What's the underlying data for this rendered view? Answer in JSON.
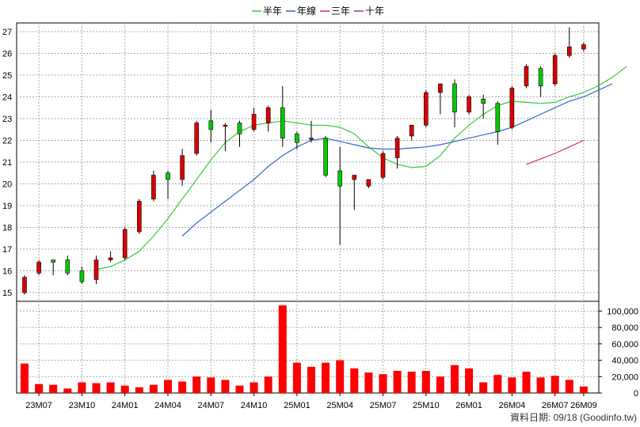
{
  "chart_data": {
    "type": "candlestick",
    "legend": [
      {
        "name": "半年",
        "color": "#33cc33"
      },
      {
        "name": "年線",
        "color": "#3366cc"
      },
      {
        "name": "三年",
        "color": "#cc3366"
      },
      {
        "name": "十年",
        "color": "#993399"
      }
    ],
    "legend_position": "top-center",
    "price_axis": {
      "ylim": [
        14.6,
        27.4
      ],
      "ticks": [
        15,
        16,
        17,
        18,
        19,
        20,
        21,
        22,
        23,
        24,
        25,
        26,
        27
      ],
      "side": "left"
    },
    "volume_axis": {
      "ylim": [
        0,
        112000
      ],
      "ticks": [
        0,
        20000,
        40000,
        60000,
        80000,
        100000
      ],
      "tick_labels": [
        "0",
        "20,000",
        "40,000",
        "60,000",
        "80,000",
        "100,000"
      ],
      "side": "right"
    },
    "x_tick_labels": [
      {
        "label": "23M07",
        "index": 1
      },
      {
        "label": "23M10",
        "index": 4
      },
      {
        "label": "24M01",
        "index": 7
      },
      {
        "label": "24M04",
        "index": 10
      },
      {
        "label": "24M07",
        "index": 13
      },
      {
        "label": "24M10",
        "index": 16
      },
      {
        "label": "25M01",
        "index": 19
      },
      {
        "label": "25M04",
        "index": 22
      },
      {
        "label": "25M07",
        "index": 25
      },
      {
        "label": "25M10",
        "index": 28
      },
      {
        "label": "26M01",
        "index": 31
      },
      {
        "label": "26M04",
        "index": 34
      },
      {
        "label": "26M07",
        "index": 37
      },
      {
        "label": "26M09",
        "index": 39
      }
    ],
    "grid": true,
    "candles": [
      {
        "o": 15.0,
        "h": 15.8,
        "l": 14.9,
        "c": 15.7,
        "v": 36000
      },
      {
        "o": 15.9,
        "h": 16.5,
        "l": 15.8,
        "c": 16.4,
        "v": 11000
      },
      {
        "o": 16.5,
        "h": 16.5,
        "l": 15.8,
        "c": 16.4,
        "v": 10000
      },
      {
        "o": 16.5,
        "h": 16.7,
        "l": 15.8,
        "c": 15.9,
        "v": 5500
      },
      {
        "o": 16.0,
        "h": 16.2,
        "l": 15.4,
        "c": 15.5,
        "v": 13000
      },
      {
        "o": 15.6,
        "h": 16.7,
        "l": 15.4,
        "c": 16.5,
        "v": 12000
      },
      {
        "o": 16.5,
        "h": 16.9,
        "l": 16.4,
        "c": 16.6,
        "v": 13000
      },
      {
        "o": 16.6,
        "h": 18.0,
        "l": 16.5,
        "c": 17.9,
        "v": 9000
      },
      {
        "o": 17.8,
        "h": 19.3,
        "l": 17.7,
        "c": 19.2,
        "v": 7000
      },
      {
        "o": 19.3,
        "h": 20.6,
        "l": 19.2,
        "c": 20.4,
        "v": 10000
      },
      {
        "o": 20.5,
        "h": 20.6,
        "l": 19.3,
        "c": 20.2,
        "v": 16000
      },
      {
        "o": 20.2,
        "h": 21.6,
        "l": 19.9,
        "c": 21.3,
        "v": 14000
      },
      {
        "o": 21.4,
        "h": 22.9,
        "l": 21.3,
        "c": 22.8,
        "v": 20000
      },
      {
        "o": 22.9,
        "h": 23.4,
        "l": 21.9,
        "c": 22.5,
        "v": 19000
      },
      {
        "o": 22.7,
        "h": 22.8,
        "l": 21.5,
        "c": 22.7,
        "v": 16000
      },
      {
        "o": 22.8,
        "h": 22.9,
        "l": 21.7,
        "c": 22.3,
        "v": 9000
      },
      {
        "o": 22.5,
        "h": 23.5,
        "l": 22.4,
        "c": 23.2,
        "v": 13000
      },
      {
        "o": 22.8,
        "h": 23.6,
        "l": 22.4,
        "c": 23.5,
        "v": 20000
      },
      {
        "o": 23.5,
        "h": 24.5,
        "l": 21.7,
        "c": 22.1,
        "v": 107000
      },
      {
        "o": 22.3,
        "h": 22.4,
        "l": 21.6,
        "c": 21.9,
        "v": 37000
      },
      {
        "o": 22.1,
        "h": 22.9,
        "l": 21.9,
        "c": 22.1,
        "v": 32000
      },
      {
        "o": 22.1,
        "h": 22.2,
        "l": 20.3,
        "c": 20.4,
        "v": 37000
      },
      {
        "o": 20.6,
        "h": 21.7,
        "l": 17.2,
        "c": 19.9,
        "v": 40000
      },
      {
        "o": 20.2,
        "h": 20.4,
        "l": 18.8,
        "c": 20.4,
        "v": 30000
      },
      {
        "o": 19.9,
        "h": 20.2,
        "l": 19.8,
        "c": 20.2,
        "v": 25000
      },
      {
        "o": 20.3,
        "h": 21.5,
        "l": 20.2,
        "c": 21.4,
        "v": 23000
      },
      {
        "o": 21.2,
        "h": 22.2,
        "l": 20.7,
        "c": 22.1,
        "v": 27000
      },
      {
        "o": 22.2,
        "h": 22.7,
        "l": 22.0,
        "c": 22.7,
        "v": 26000
      },
      {
        "o": 22.7,
        "h": 24.3,
        "l": 22.6,
        "c": 24.2,
        "v": 27000
      },
      {
        "o": 24.2,
        "h": 24.6,
        "l": 23.2,
        "c": 24.6,
        "v": 20000
      },
      {
        "o": 24.6,
        "h": 24.8,
        "l": 22.6,
        "c": 23.3,
        "v": 34000
      },
      {
        "o": 23.3,
        "h": 24.1,
        "l": 23.2,
        "c": 24.0,
        "v": 30000
      },
      {
        "o": 23.9,
        "h": 24.1,
        "l": 23.0,
        "c": 23.7,
        "v": 13000
      },
      {
        "o": 23.7,
        "h": 23.8,
        "l": 21.8,
        "c": 22.4,
        "v": 22000
      },
      {
        "o": 22.6,
        "h": 24.5,
        "l": 22.5,
        "c": 24.4,
        "v": 19000
      },
      {
        "o": 24.5,
        "h": 25.5,
        "l": 24.4,
        "c": 25.4,
        "v": 26000
      },
      {
        "o": 25.3,
        "h": 25.4,
        "l": 24.0,
        "c": 24.5,
        "v": 19000
      },
      {
        "o": 24.6,
        "h": 26.0,
        "l": 24.5,
        "c": 25.9,
        "v": 21000
      },
      {
        "o": 25.9,
        "h": 27.2,
        "l": 25.8,
        "c": 26.3,
        "v": 16000
      },
      {
        "o": 26.2,
        "h": 26.5,
        "l": 26.1,
        "c": 26.4,
        "v": 8000
      }
    ],
    "ma_series": [
      {
        "name": "半年",
        "color": "#33cc33",
        "start": 5,
        "values": [
          16.05,
          16.2,
          16.5,
          16.9,
          17.6,
          18.4,
          19.3,
          20.2,
          21.1,
          21.9,
          22.4,
          22.7,
          22.8,
          22.9,
          22.8,
          22.7,
          22.7,
          22.6,
          22.3,
          21.7,
          21.2,
          20.9,
          20.75,
          20.8,
          21.3,
          22.1,
          22.7,
          23.2,
          23.6,
          23.8,
          23.75,
          23.7,
          23.75,
          24.0,
          24.2,
          24.5,
          24.9,
          25.4
        ]
      },
      {
        "name": "年線",
        "color": "#3366cc",
        "start": 11,
        "values": [
          17.6,
          18.2,
          18.7,
          19.2,
          19.7,
          20.2,
          20.8,
          21.3,
          21.7,
          22.0,
          22.1,
          21.95,
          21.8,
          21.65,
          21.6,
          21.6,
          21.65,
          21.7,
          21.8,
          21.95,
          22.1,
          22.25,
          22.4,
          22.6,
          22.9,
          23.2,
          23.5,
          23.8,
          24.0,
          24.3,
          24.6
        ]
      },
      {
        "name": "三年",
        "color": "#cc3366",
        "start": 35,
        "values": [
          20.9,
          21.15,
          21.4,
          21.7,
          22.0
        ]
      }
    ],
    "footer": "資料日期: 09/18  (Goodinfo.tw)"
  }
}
